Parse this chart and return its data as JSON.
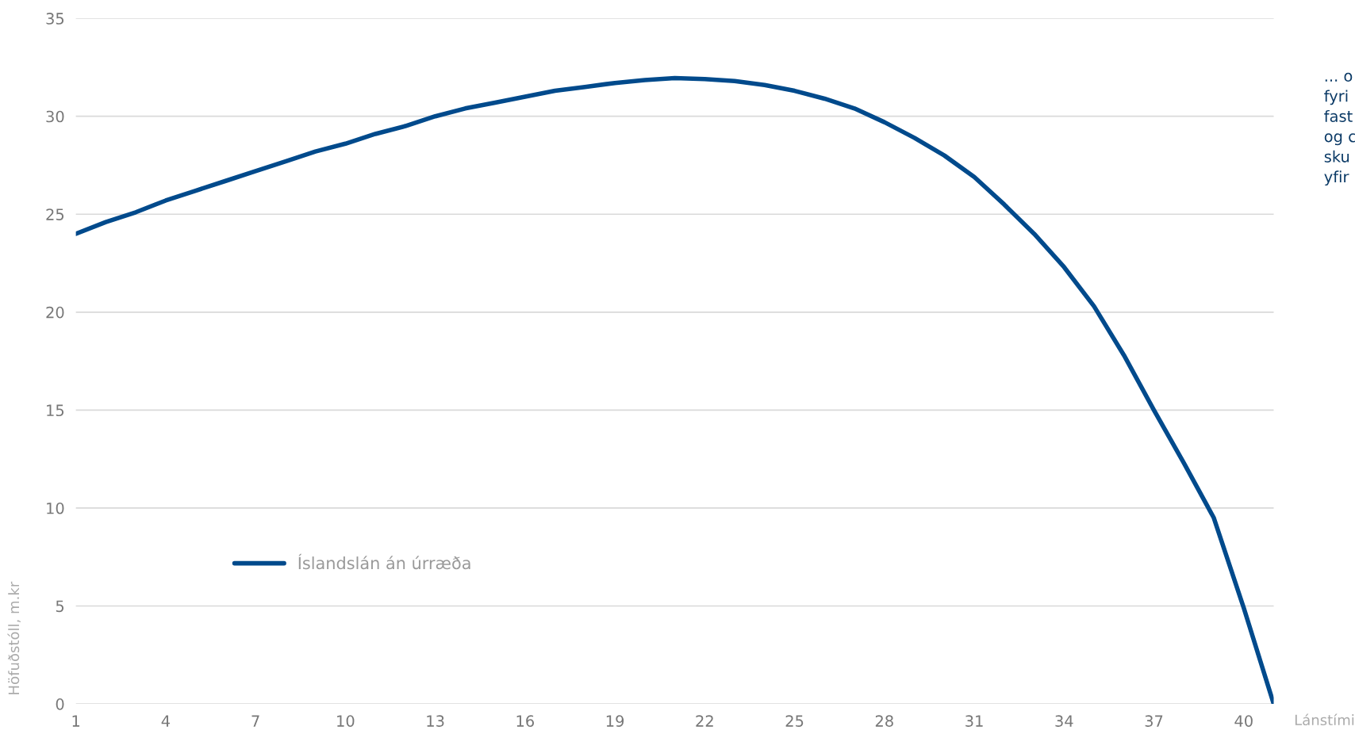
{
  "chart_data": {
    "type": "line",
    "xlabel": "Lánstími",
    "ylabel": "Höfuðstóll, m.kr",
    "x": [
      1,
      2,
      3,
      4,
      5,
      6,
      7,
      8,
      9,
      10,
      11,
      12,
      13,
      14,
      15,
      16,
      17,
      18,
      19,
      20,
      21,
      22,
      23,
      24,
      25,
      26,
      27,
      28,
      29,
      30,
      31,
      32,
      33,
      34,
      35,
      36,
      37,
      38,
      39,
      40,
      41
    ],
    "series": [
      {
        "name": "Íslandslán án úrræða",
        "color": "#004a8c",
        "values": [
          24,
          24.6,
          25.1,
          25.7,
          26.2,
          26.7,
          27.2,
          27.7,
          28.2,
          28.6,
          29.1,
          29.5,
          30.0,
          30.4,
          30.7,
          31.0,
          31.3,
          31.5,
          31.7,
          31.85,
          31.95,
          31.9,
          31.8,
          31.6,
          31.3,
          30.9,
          30.4,
          29.7,
          28.9,
          28.0,
          26.9,
          25.5,
          24.0,
          22.3,
          20.3,
          17.8,
          15.0,
          12.3,
          9.5,
          4.9,
          0
        ]
      }
    ],
    "xlim": [
      1,
      41
    ],
    "xticks": [
      1,
      4,
      7,
      10,
      13,
      16,
      19,
      22,
      25,
      28,
      31,
      34,
      37,
      40
    ],
    "ylim": [
      0,
      35
    ],
    "yticks": [
      0,
      5,
      10,
      15,
      20,
      25,
      30,
      35
    ],
    "grid": "y",
    "legend": "bottom left",
    "marker": "none",
    "line_style": "solid",
    "annotations": [
      "... o\nfyri\nfast\nog c\nsku\nyfir"
    ]
  }
}
